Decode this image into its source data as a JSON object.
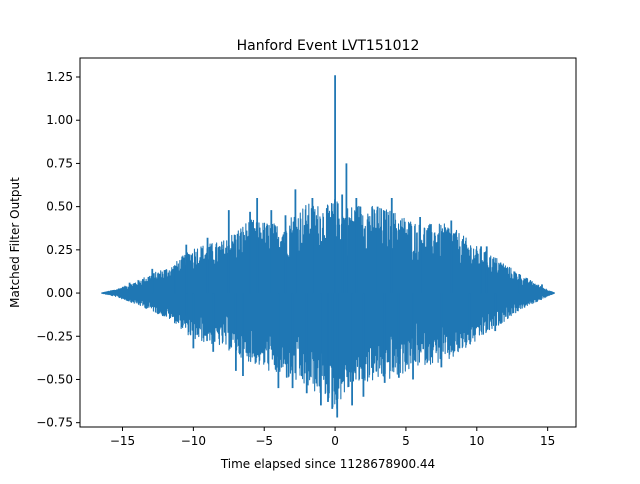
{
  "chart_data": {
    "type": "line",
    "title": "Hanford Event LVT151012",
    "xlabel": "Time elapsed since 1128678900.44",
    "ylabel": "Matched Filter Output",
    "xlim": [
      -18.0,
      17.0
    ],
    "ylim": [
      -0.775,
      1.36
    ],
    "xticks": [
      -15,
      -10,
      -5,
      0,
      5,
      10,
      15
    ],
    "xtick_labels": [
      "−15",
      "−10",
      "−5",
      "0",
      "5",
      "10",
      "15"
    ],
    "yticks": [
      -0.75,
      -0.5,
      -0.25,
      0.0,
      0.25,
      0.5,
      0.75,
      1.0,
      1.25
    ],
    "ytick_labels": [
      "−0.75",
      "−0.50",
      "−0.25",
      "0.00",
      "0.25",
      "0.50",
      "0.75",
      "1.00",
      "1.25"
    ],
    "grid": false,
    "series": [
      {
        "color": "#1f77b4",
        "x_range": [
          -16.5,
          15.5
        ],
        "envelope": {
          "x": [
            -16.5,
            -15.5,
            -14.5,
            -13.0,
            -11.5,
            -10.0,
            -8.0,
            -6.0,
            -4.0,
            -2.0,
            -0.5,
            0.0,
            0.5,
            2.0,
            4.0,
            6.0,
            8.0,
            10.0,
            11.5,
            13.0,
            14.5,
            15.5
          ],
          "upper": [
            0.0,
            0.02,
            0.05,
            0.11,
            0.16,
            0.27,
            0.3,
            0.43,
            0.4,
            0.52,
            0.51,
            0.55,
            0.5,
            0.52,
            0.48,
            0.4,
            0.4,
            0.27,
            0.2,
            0.11,
            0.04,
            0.0
          ],
          "lower": [
            0.0,
            -0.02,
            -0.05,
            -0.1,
            -0.16,
            -0.27,
            -0.31,
            -0.4,
            -0.48,
            -0.55,
            -0.62,
            -0.7,
            -0.6,
            -0.52,
            -0.5,
            -0.42,
            -0.4,
            -0.28,
            -0.19,
            -0.1,
            -0.04,
            0.0
          ]
        },
        "peaks": [
          {
            "x": -14.5,
            "y": 0.06
          },
          {
            "x": -12.9,
            "y": 0.14
          },
          {
            "x": -11.3,
            "y": 0.15
          },
          {
            "x": -10.5,
            "y": -0.13
          },
          {
            "x": -10.5,
            "y": 0.28
          },
          {
            "x": -10.0,
            "y": -0.32
          },
          {
            "x": -9.0,
            "y": 0.32
          },
          {
            "x": -8.6,
            "y": -0.34
          },
          {
            "x": -7.5,
            "y": 0.48
          },
          {
            "x": -7.0,
            "y": -0.45
          },
          {
            "x": -6.5,
            "y": -0.48
          },
          {
            "x": -6.0,
            "y": 0.47
          },
          {
            "x": -5.5,
            "y": 0.55
          },
          {
            "x": -4.5,
            "y": 0.48
          },
          {
            "x": -4.0,
            "y": -0.55
          },
          {
            "x": -3.5,
            "y": 0.45
          },
          {
            "x": -3.0,
            "y": -0.55
          },
          {
            "x": -2.8,
            "y": 0.6
          },
          {
            "x": -2.0,
            "y": -0.58
          },
          {
            "x": -1.6,
            "y": 0.55
          },
          {
            "x": -1.0,
            "y": -0.65
          },
          {
            "x": -0.5,
            "y": -0.63
          },
          {
            "x": -0.2,
            "y": -0.67
          },
          {
            "x": 0.0,
            "y": 1.26
          },
          {
            "x": 0.15,
            "y": -0.72
          },
          {
            "x": 0.5,
            "y": 0.57
          },
          {
            "x": 0.8,
            "y": 0.75
          },
          {
            "x": 1.2,
            "y": -0.65
          },
          {
            "x": 1.5,
            "y": 0.55
          },
          {
            "x": 2.0,
            "y": -0.6
          },
          {
            "x": 3.0,
            "y": 0.5
          },
          {
            "x": 3.5,
            "y": -0.52
          },
          {
            "x": 4.0,
            "y": 0.55
          },
          {
            "x": 4.5,
            "y": -0.49
          },
          {
            "x": 5.5,
            "y": -0.5
          },
          {
            "x": 6.0,
            "y": 0.44
          },
          {
            "x": 7.5,
            "y": -0.43
          },
          {
            "x": 8.2,
            "y": 0.42
          },
          {
            "x": 9.5,
            "y": -0.26
          },
          {
            "x": 10.3,
            "y": 0.27
          },
          {
            "x": 10.7,
            "y": 0.27
          },
          {
            "x": 11.3,
            "y": -0.22
          },
          {
            "x": 13.0,
            "y": 0.11
          },
          {
            "x": 14.6,
            "y": 0.05
          }
        ]
      }
    ]
  }
}
